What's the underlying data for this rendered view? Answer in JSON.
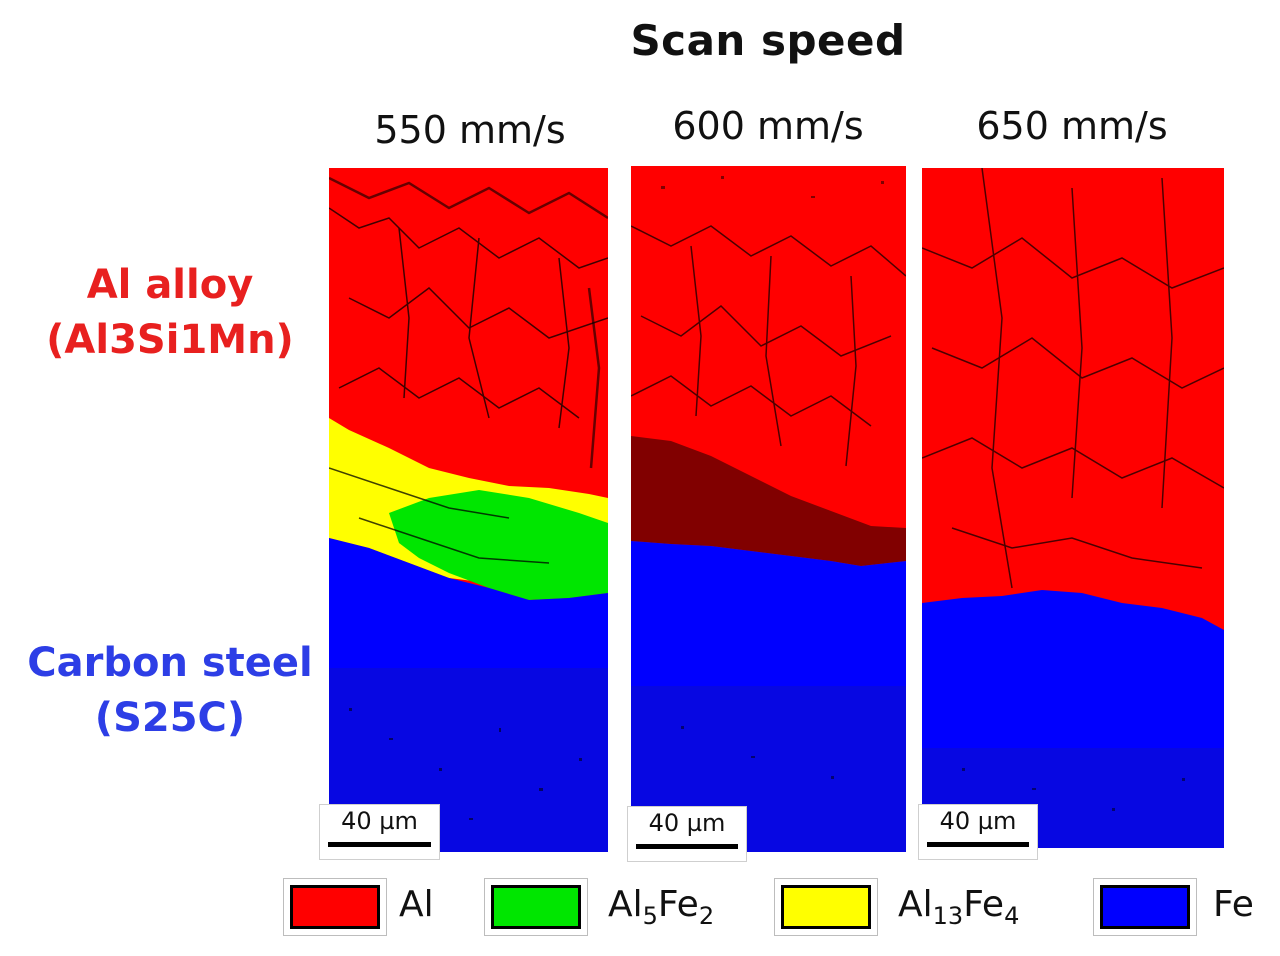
{
  "title": "Scan speed",
  "columns": [
    {
      "label": "550 mm/s",
      "scale": "40 µm"
    },
    {
      "label": "600 mm/s",
      "scale": "40 µm"
    },
    {
      "label": "650 mm/s",
      "scale": "40 µm"
    }
  ],
  "rows": {
    "al": {
      "line1": "Al alloy",
      "line2": "(Al3Si1Mn)"
    },
    "fe": {
      "line1": "Carbon steel",
      "line2": "(S25C)"
    }
  },
  "legend": [
    {
      "base": "Al",
      "sub1": "",
      "mid": "",
      "sub2": "",
      "color": "#ff0000"
    },
    {
      "base": "Al",
      "sub1": "5",
      "mid": "Fe",
      "sub2": "2",
      "color": "#00e600"
    },
    {
      "base": "Al",
      "sub1": "13",
      "mid": "Fe",
      "sub2": "4",
      "color": "#ffff00"
    },
    {
      "base": "Fe",
      "sub1": "",
      "mid": "",
      "sub2": "",
      "color": "#0000ff"
    }
  ],
  "colors": {
    "al_phase": "#ff0000",
    "al5fe2_phase": "#00e600",
    "al13fe4_phase": "#ffff00",
    "fe_phase": "#0000ff",
    "al_label": "#e8201f",
    "fe_label": "#2d3ee6"
  }
}
